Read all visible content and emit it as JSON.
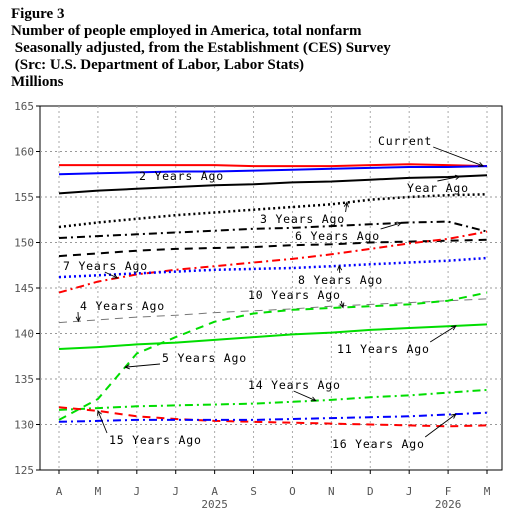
{
  "header": {
    "figure": "Figure 3",
    "line1": "Number of people employed in America, total nonfarm",
    "line2": " Seasonally adjusted, from the Establishment (CES) Survey",
    "line3": " (Src: U.S. Department of Labor, Labor Stats)",
    "units": "Millions"
  },
  "chart_data": {
    "type": "line",
    "ylim": [
      125,
      165
    ],
    "yticks": [
      125,
      130,
      135,
      140,
      145,
      150,
      155,
      160,
      165
    ],
    "x_labels": [
      "A",
      "M",
      "J",
      "J",
      "A",
      "S",
      "O",
      "N",
      "D",
      "J",
      "F",
      "M"
    ],
    "year_labels": [
      {
        "label": "2025",
        "month_index": 4
      },
      {
        "label": "2026",
        "month_index": 10
      }
    ],
    "grid": true,
    "series": [
      {
        "name": "Current",
        "color": "#ff0000",
        "dash": "",
        "width": 2,
        "values": [
          158.5,
          158.5,
          158.5,
          158.5,
          158.5,
          158.4,
          158.4,
          158.4,
          158.5,
          158.6,
          158.5,
          158.4
        ]
      },
      {
        "name": "2 Years Ago",
        "color": "#0000ff",
        "dash": "",
        "width": 2,
        "values": [
          157.5,
          157.6,
          157.7,
          157.8,
          157.8,
          157.9,
          158.0,
          158.1,
          158.2,
          158.3,
          158.3,
          158.4
        ]
      },
      {
        "name": "Year Ago",
        "color": "#000000",
        "dash": "",
        "width": 2,
        "values": [
          155.4,
          155.7,
          155.9,
          156.1,
          156.3,
          156.4,
          156.6,
          156.7,
          156.9,
          157.1,
          157.2,
          157.4
        ]
      },
      {
        "name": "3 Years Ago",
        "color": "#000000",
        "dash": "2 3",
        "width": 2.5,
        "values": [
          151.7,
          152.2,
          152.6,
          153.0,
          153.3,
          153.6,
          153.9,
          154.2,
          154.7,
          155.0,
          155.2,
          155.3
        ]
      },
      {
        "name": "6 Years Ago",
        "color": "#000000",
        "dash": "8 4 2 4",
        "width": 2,
        "values": [
          150.5,
          150.7,
          150.9,
          151.1,
          151.3,
          151.5,
          151.6,
          151.8,
          152.0,
          152.2,
          152.3,
          151.2
        ]
      },
      {
        "name": "",
        "color": "#000000",
        "dash": "8 6",
        "width": 2,
        "values": [
          148.5,
          148.8,
          149.1,
          149.3,
          149.4,
          149.5,
          149.7,
          149.8,
          150.0,
          150.1,
          150.2,
          150.3
        ]
      },
      {
        "name": "7 Years Ago",
        "color": "#ff0000",
        "dash": "8 4 2 4",
        "width": 2,
        "values": [
          144.5,
          145.7,
          146.5,
          147.0,
          147.4,
          147.8,
          148.2,
          148.7,
          149.3,
          149.9,
          150.4,
          151.2
        ]
      },
      {
        "name": "8 Years Ago",
        "color": "#0000ff",
        "dash": "2 3",
        "width": 2.5,
        "values": [
          146.2,
          146.4,
          146.6,
          146.8,
          147.0,
          147.1,
          147.2,
          147.4,
          147.6,
          147.8,
          148.0,
          148.3
        ]
      },
      {
        "name": "4 Years Ago",
        "color": "#777777",
        "dash": "8 6",
        "width": 1,
        "values": [
          141.2,
          141.5,
          141.8,
          142.0,
          142.3,
          142.5,
          142.7,
          143.0,
          143.2,
          143.4,
          143.6,
          143.8
        ]
      },
      {
        "name": "10 Years Ago",
        "color": "#00dd00",
        "dash": "8 6",
        "width": 2,
        "values": [
          130.5,
          132.8,
          137.8,
          139.6,
          141.3,
          142.2,
          142.6,
          142.8,
          143.0,
          143.2,
          143.6,
          144.5
        ]
      },
      {
        "name": "11 Years Ago",
        "color": "#00dd00",
        "dash": "",
        "width": 2,
        "values": [
          138.3,
          138.5,
          138.8,
          139.0,
          139.3,
          139.6,
          139.9,
          140.1,
          140.4,
          140.6,
          140.8,
          141.0
        ]
      },
      {
        "name": "14 Years Ago",
        "color": "#00dd00",
        "dash": "8 4 2 4",
        "width": 2,
        "values": [
          131.6,
          131.8,
          132.0,
          132.1,
          132.2,
          132.3,
          132.5,
          132.7,
          133.0,
          133.2,
          133.5,
          133.8
        ]
      },
      {
        "name": "15 Years Ago",
        "color": "#ff0000",
        "dash": "8 6",
        "width": 2,
        "values": [
          131.9,
          131.5,
          130.9,
          130.6,
          130.4,
          130.3,
          130.2,
          130.1,
          130.0,
          129.9,
          129.8,
          129.9
        ]
      },
      {
        "name": "16 Years Ago",
        "color": "#0000ff",
        "dash": "8 4 2 4",
        "width": 2,
        "values": [
          130.3,
          130.4,
          130.5,
          130.5,
          130.5,
          130.5,
          130.6,
          130.7,
          130.8,
          130.9,
          131.1,
          131.3
        ]
      }
    ],
    "annotations": [
      {
        "text": "Current",
        "series": "Current"
      },
      {
        "text": "2 Years Ago",
        "series": "2 Years Ago"
      },
      {
        "text": "Year Ago",
        "series": "Year Ago"
      },
      {
        "text": "3 Years Ago",
        "series": "3 Years Ago"
      },
      {
        "text": "6 Years Ago",
        "series": "6 Years Ago"
      },
      {
        "text": "7 Years Ago",
        "series": "7 Years Ago"
      },
      {
        "text": "8 Years Ago",
        "series": "8 Years Ago"
      },
      {
        "text": "4 Years Ago",
        "series": "4 Years Ago"
      },
      {
        "text": "10 Years Ago",
        "series": "10 Years Ago"
      },
      {
        "text": "5 Years Ago",
        "series": "10 Years Ago"
      },
      {
        "text": "11 Years Ago",
        "series": "11 Years Ago"
      },
      {
        "text": "14 Years Ago",
        "series": "14 Years Ago"
      },
      {
        "text": "15 Years Ago",
        "series": "15 Years Ago"
      },
      {
        "text": "16 Years Ago",
        "series": "16 Years Ago"
      }
    ]
  }
}
